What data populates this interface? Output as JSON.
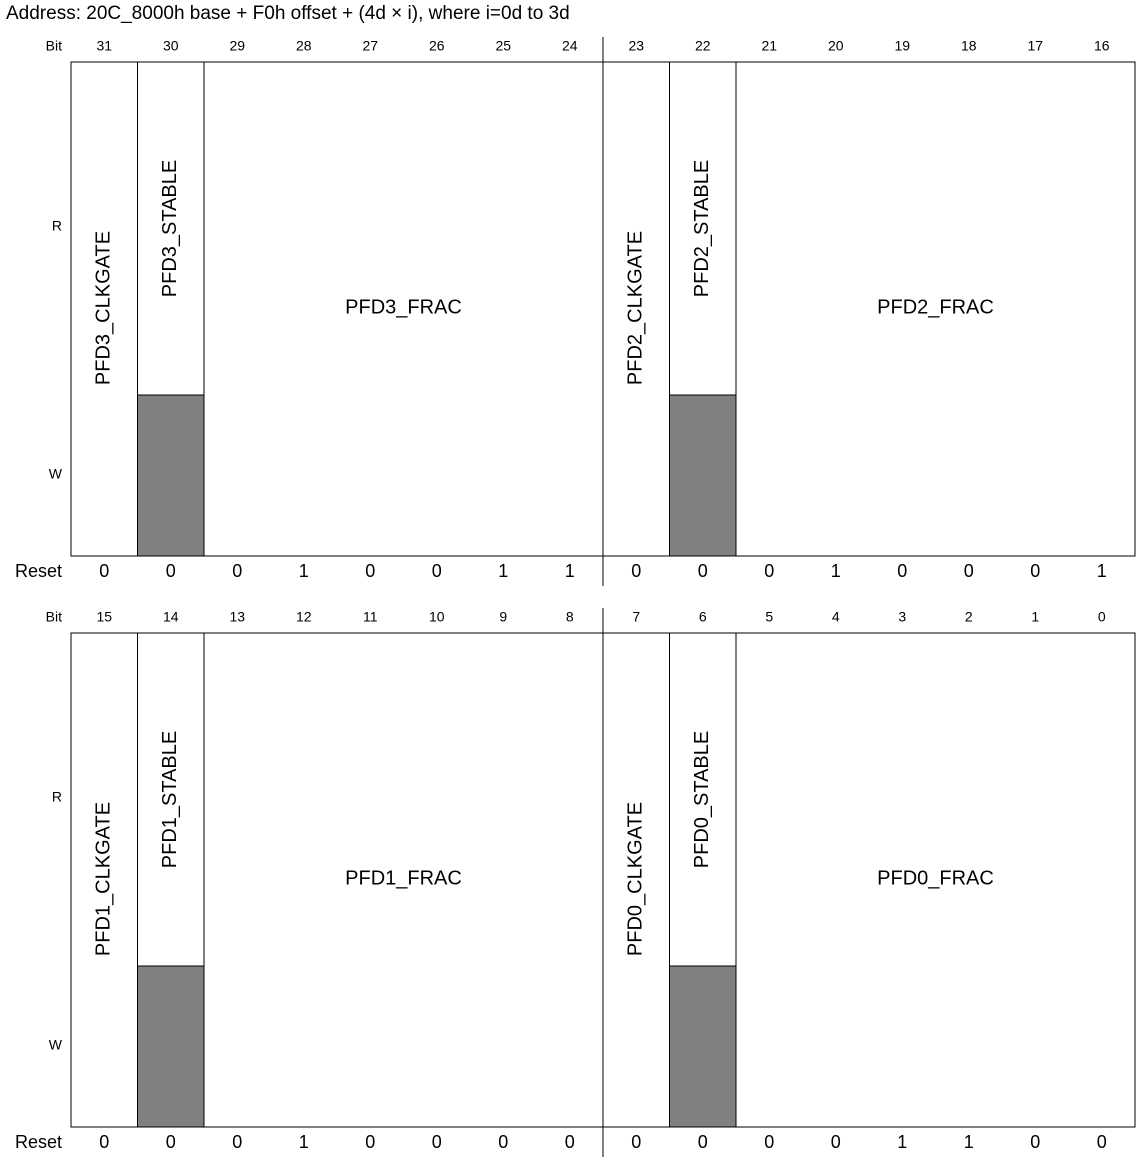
{
  "address": "Address: 20C_8000h base + F0h offset + (4d × i), where i=0d to 3d",
  "row_labels": {
    "bit": "Bit",
    "read": "R",
    "write": "W",
    "reset": "Reset"
  },
  "registers": [
    {
      "bits": [
        31,
        30,
        29,
        28,
        27,
        26,
        25,
        24,
        23,
        22,
        21,
        20,
        19,
        18,
        17,
        16
      ],
      "fields": [
        "PFD3_CLKGATE",
        "PFD3_STABLE",
        "PFD3_FRAC",
        "PFD2_CLKGATE",
        "PFD2_STABLE",
        "PFD2_FRAC"
      ],
      "reset": [
        0,
        0,
        0,
        1,
        0,
        0,
        1,
        1,
        0,
        0,
        0,
        1,
        0,
        0,
        0,
        1
      ]
    },
    {
      "bits": [
        15,
        14,
        13,
        12,
        11,
        10,
        9,
        8,
        7,
        6,
        5,
        4,
        3,
        2,
        1,
        0
      ],
      "fields": [
        "PFD1_CLKGATE",
        "PFD1_STABLE",
        "PFD1_FRAC",
        "PFD0_CLKGATE",
        "PFD0_STABLE",
        "PFD0_FRAC"
      ],
      "reset": [
        0,
        0,
        0,
        1,
        0,
        0,
        0,
        0,
        0,
        0,
        0,
        0,
        1,
        1,
        0,
        0
      ]
    }
  ]
}
